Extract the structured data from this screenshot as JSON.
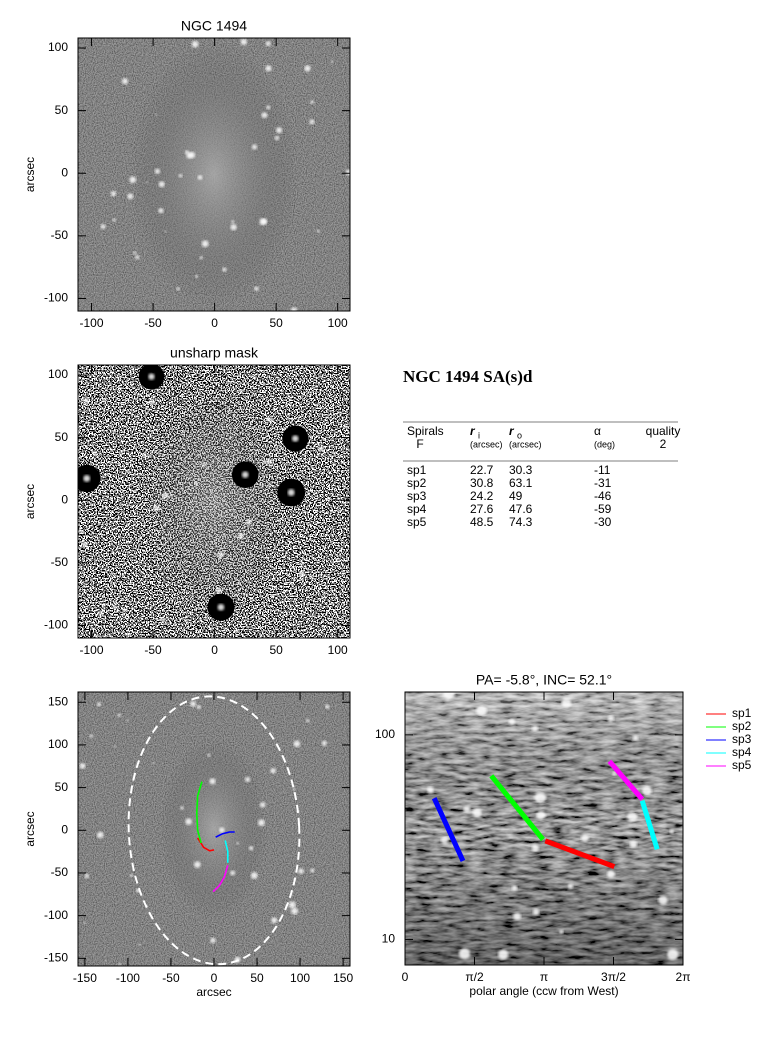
{
  "chart_data": [
    {
      "type": "image",
      "title": "NGC 1494",
      "ylabel": "arcsec",
      "xlim": [
        -111,
        110
      ],
      "ylim": [
        -110,
        108
      ],
      "xticks": [
        -100,
        -50,
        0,
        50,
        100
      ],
      "yticks": [
        -100,
        -50,
        0,
        50,
        100
      ]
    },
    {
      "type": "image",
      "title": "unsharp mask",
      "ylabel": "arcsec",
      "xlim": [
        -111,
        110
      ],
      "ylim": [
        -110,
        108
      ],
      "xticks": [
        -100,
        -50,
        0,
        50,
        100
      ],
      "yticks": [
        -100,
        -50,
        0,
        50,
        100
      ]
    },
    {
      "type": "image",
      "xlabel": "arcsec",
      "ylabel": "arcsec",
      "xlim": [
        -158,
        158
      ],
      "ylim": [
        -159,
        162
      ],
      "xticks": [
        -150,
        -100,
        -50,
        0,
        50,
        100,
        150
      ],
      "yticks": [
        -150,
        -100,
        -50,
        0,
        50,
        100,
        150
      ],
      "ellipse": {
        "cx": 0,
        "cy": 0,
        "rx": 99,
        "ry": 157,
        "color": "#ffffff"
      },
      "series": [
        {
          "color": "#ff0000",
          "x": [
            -19,
            -12,
            -5,
            0
          ],
          "values": [
            -9,
            -20,
            -24,
            -23
          ]
        },
        {
          "color": "#00ff00",
          "x": [
            -14,
            -19,
            -20,
            -19,
            -15
          ],
          "values": [
            57,
            40,
            20,
            0,
            -15
          ]
        },
        {
          "color": "#0000ff",
          "x": [
            2,
            10,
            18,
            24
          ],
          "values": [
            -8,
            -4,
            -2,
            -2
          ]
        },
        {
          "color": "#00ffff",
          "x": [
            13,
            16,
            16
          ],
          "values": [
            -12,
            -25,
            -38
          ]
        },
        {
          "color": "#ff00ff",
          "x": [
            16,
            12,
            6,
            -1
          ],
          "values": [
            -41,
            -55,
            -65,
            -72
          ]
        }
      ]
    },
    {
      "type": "line",
      "title": "PA=  -5.8°, INC=  52.1°",
      "xlabel": "polar angle (ccw from West)",
      "xlim": [
        0,
        6.2832
      ],
      "ylim": [
        7.5,
        162
      ],
      "log_y": true,
      "xticks": [
        {
          "value": 0,
          "label": "0"
        },
        {
          "value": 1.5708,
          "label": "π/2"
        },
        {
          "value": 3.1416,
          "label": "π"
        },
        {
          "value": 4.7124,
          "label": "3π/2"
        },
        {
          "value": 6.2832,
          "label": "2π"
        }
      ],
      "yticks": [
        10,
        100
      ],
      "series": [
        {
          "name": "sp1",
          "color": "#ff0000",
          "x": [
            3.17,
            4.73
          ],
          "values": [
            30.3,
            22.7
          ]
        },
        {
          "name": "sp2",
          "color": "#00ff00",
          "x": [
            1.95,
            3.12
          ],
          "values": [
            63.1,
            30.8
          ]
        },
        {
          "name": "sp3",
          "color": "#0000ff",
          "x": [
            0.66,
            1.31
          ],
          "values": [
            49.0,
            24.2
          ]
        },
        {
          "name": "sp4",
          "color": "#00ffff",
          "x": [
            5.36,
            5.7
          ],
          "values": [
            47.6,
            27.6
          ]
        },
        {
          "name": "sp5",
          "color": "#ff00ff",
          "x": [
            4.62,
            5.36
          ],
          "values": [
            74.3,
            48.5
          ]
        }
      ]
    }
  ],
  "table": {
    "title": "NGC 1494  SA(s)d",
    "columns": [
      {
        "name": "Spirals",
        "sub": "F"
      },
      {
        "name": "r",
        "index": "i",
        "sub": "(arcsec)"
      },
      {
        "name": "r",
        "index": "o",
        "sub": "(arcsec)"
      },
      {
        "name": "α",
        "sub": "(deg)"
      },
      {
        "name": "quality",
        "sub": "2"
      }
    ],
    "rows": [
      [
        "sp1",
        22.7,
        30.3,
        -11
      ],
      [
        "sp2",
        30.8,
        63.1,
        -31
      ],
      [
        "sp3",
        24.2,
        49.0,
        -46
      ],
      [
        "sp4",
        27.6,
        47.6,
        -59
      ],
      [
        "sp5",
        48.5,
        74.3,
        -30
      ]
    ]
  }
}
